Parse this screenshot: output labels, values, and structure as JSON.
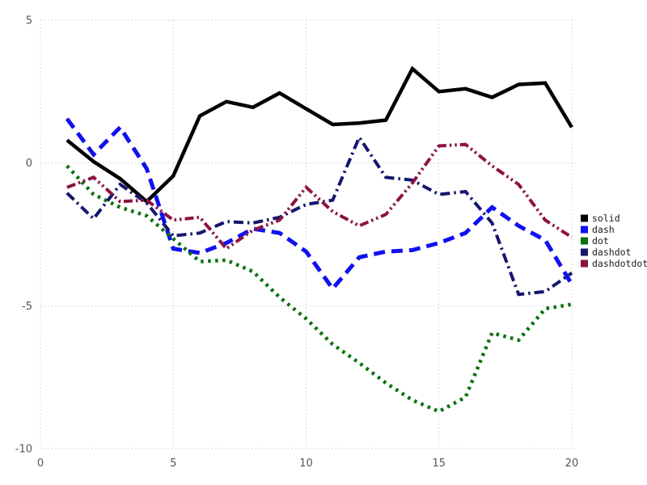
{
  "chart_data": {
    "type": "line",
    "title": "",
    "xlabel": "",
    "ylabel": "",
    "xlim": [
      0,
      20
    ],
    "ylim": [
      -10,
      5
    ],
    "x_ticks": [
      "0",
      "5",
      "10",
      "15",
      "20"
    ],
    "x_tick_values": [
      0,
      5,
      10,
      15,
      20
    ],
    "y_ticks": [
      "5",
      "0",
      "-5",
      "-10"
    ],
    "y_tick_values": [
      5,
      0,
      -5,
      -10
    ],
    "grid": true,
    "legend_position": "right",
    "x": [
      1,
      2,
      3,
      4,
      5,
      6,
      7,
      8,
      9,
      10,
      11,
      12,
      13,
      14,
      15,
      16,
      17,
      18,
      19,
      20
    ],
    "series": [
      {
        "name": "solid",
        "style": "solid",
        "color": "#000000",
        "width": 4.5,
        "values": [
          0.8,
          0.05,
          -0.55,
          -1.35,
          -0.45,
          1.65,
          2.15,
          1.95,
          2.45,
          1.9,
          1.35,
          1.4,
          1.5,
          3.3,
          2.5,
          2.6,
          2.3,
          2.75,
          2.8,
          1.25
        ]
      },
      {
        "name": "dash",
        "style": "dash",
        "color": "#1010f0",
        "width": 5,
        "values": [
          1.55,
          0.3,
          1.25,
          -0.2,
          -3.0,
          -3.15,
          -2.8,
          -2.3,
          -2.45,
          -3.1,
          -4.4,
          -3.3,
          -3.1,
          -3.05,
          -2.8,
          -2.45,
          -1.55,
          -2.2,
          -2.7,
          -4.25
        ]
      },
      {
        "name": "dot",
        "style": "dot",
        "color": "#0a730d",
        "width": 4.5,
        "values": [
          -0.1,
          -1.1,
          -1.55,
          -1.85,
          -2.65,
          -3.45,
          -3.4,
          -3.8,
          -4.7,
          -5.45,
          -6.35,
          -7.0,
          -7.7,
          -8.3,
          -8.7,
          -8.2,
          -5.95,
          -6.2,
          -5.1,
          -4.95
        ]
      },
      {
        "name": "dashdot",
        "style": "dashdot",
        "color": "#16166e",
        "width": 4,
        "values": [
          -1.05,
          -1.95,
          -0.75,
          -1.4,
          -2.55,
          -2.45,
          -2.05,
          -2.1,
          -1.9,
          -1.45,
          -1.3,
          0.9,
          -0.5,
          -0.6,
          -1.1,
          -1.0,
          -2.1,
          -4.6,
          -4.5,
          -3.85
        ]
      },
      {
        "name": "dashdotdot",
        "style": "dashdotdot",
        "color": "#8d1345",
        "width": 4,
        "values": [
          -0.85,
          -0.5,
          -1.35,
          -1.3,
          -2.0,
          -1.9,
          -3.0,
          -2.35,
          -2.0,
          -0.85,
          -1.7,
          -2.2,
          -1.8,
          -0.7,
          0.6,
          0.65,
          -0.1,
          -0.75,
          -2.0,
          -2.6
        ]
      }
    ],
    "legend": [
      {
        "label": "solid",
        "color": "#000000"
      },
      {
        "label": "dash",
        "color": "#1010f0"
      },
      {
        "label": "dot",
        "color": "#0a730d"
      },
      {
        "label": "dashdot",
        "color": "#16166e"
      },
      {
        "label": "dashdotdot",
        "color": "#8d1345"
      }
    ]
  },
  "colors": {
    "background": "#ffffff",
    "grid": "#cfcfdc",
    "tick_label": "#555555",
    "legend_text": "#1a1a1a"
  }
}
